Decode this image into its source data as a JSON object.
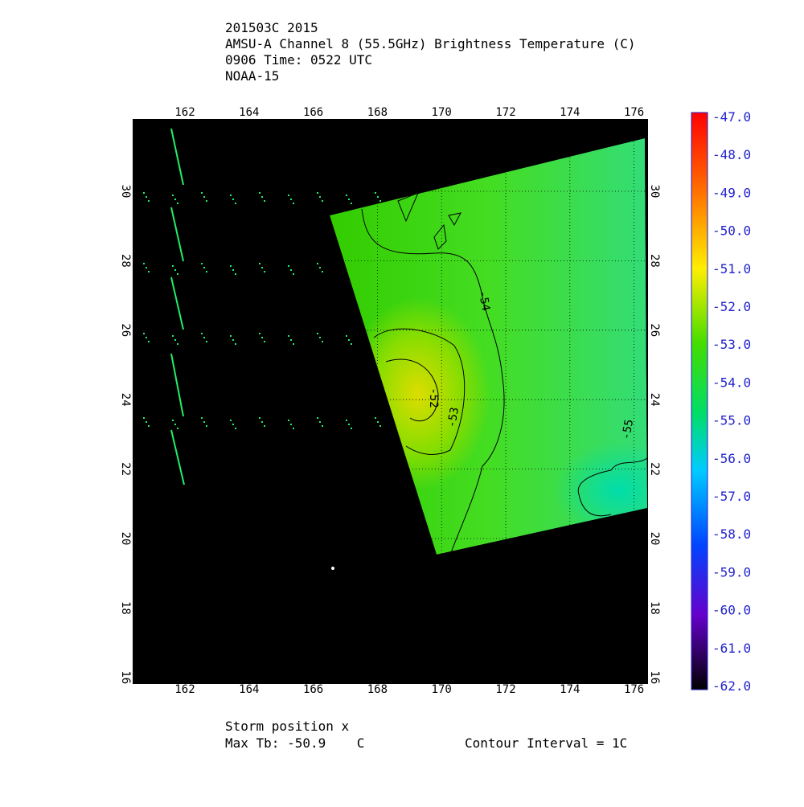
{
  "header": {
    "lines": [
      "201503C 2015",
      "AMSU-A Channel 8 (55.5GHz) Brightness Temperature (C)",
      "0906 Time: 0522 UTC",
      "NOAA-15"
    ]
  },
  "map": {
    "lon_ticks": [
      162,
      164,
      166,
      168,
      170,
      172,
      174,
      176
    ],
    "lat_ticks": [
      16,
      18,
      20,
      22,
      24,
      26,
      28,
      30
    ],
    "contour_labels": [
      "-54",
      "-53",
      "-52",
      "-55"
    ]
  },
  "colorbar": {
    "labels": [
      "-47.0",
      "-48.0",
      "-49.0",
      "-50.0",
      "-51.0",
      "-52.0",
      "-53.0",
      "-54.0",
      "-55.0",
      "-56.0",
      "-57.0",
      "-58.0",
      "-59.0",
      "-60.0",
      "-61.0",
      "-62.0"
    ]
  },
  "footer": {
    "storm": "Storm position x",
    "max_tb": "Max Tb: -50.9    C",
    "interval": "Contour Interval = 1C"
  }
}
